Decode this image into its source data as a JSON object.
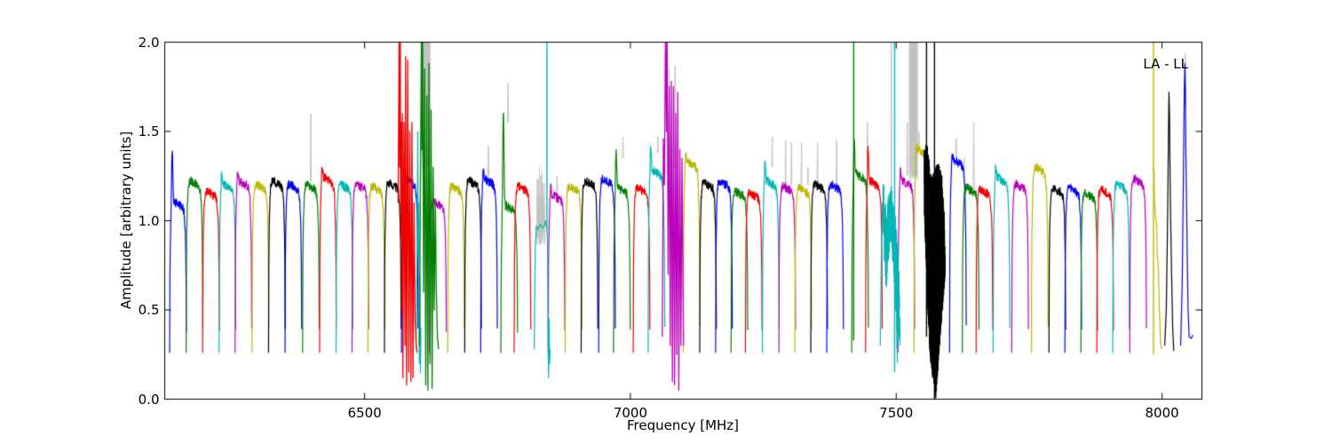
{
  "chart_data": {
    "type": "line",
    "title": "",
    "xlabel": "Frequency [MHz]",
    "ylabel": "Amplitude [arbitrary units]",
    "annotation": "LA - LL",
    "xlim": [
      6124,
      8075
    ],
    "ylim": [
      0.0,
      2.0
    ],
    "x_ticks": [
      6500,
      7000,
      7500,
      8000
    ],
    "x_tick_labels": [
      "6500",
      "7000",
      "7500",
      "8000"
    ],
    "y_ticks": [
      0.0,
      0.5,
      1.0,
      1.5,
      2.0
    ],
    "y_tick_labels": [
      "0.0",
      "0.5",
      "1.0",
      "1.5",
      "2.0"
    ],
    "grid": false,
    "legend": "none",
    "frame_color": "#000000",
    "background": "#ffffff",
    "palette": {
      "b": "#0000ee",
      "g": "#007d00",
      "r": "#ee0000",
      "c": "#00b5b5",
      "m": "#bb00bb",
      "y": "#b8b800",
      "k": "#000000",
      "gray": "#c3c3c3"
    },
    "subband_width_mhz": 31,
    "baseline_amplitude": 0.26,
    "subbands": [
      {
        "f": 6149,
        "c": "b",
        "p": 1.12,
        "s": 1.44
      },
      {
        "f": 6180,
        "c": "g",
        "p": 1.24
      },
      {
        "f": 6211,
        "c": "r",
        "p": 1.18
      },
      {
        "f": 6242,
        "c": "c",
        "p": 1.22,
        "s": 1.3
      },
      {
        "f": 6272,
        "c": "m",
        "p": 1.24,
        "s": 1.3
      },
      {
        "f": 6304,
        "c": "y",
        "p": 1.22
      },
      {
        "f": 6335,
        "c": "k",
        "p": 1.24
      },
      {
        "f": 6366,
        "c": "b",
        "p": 1.22
      },
      {
        "f": 6399,
        "c": "g",
        "p": 1.22
      },
      {
        "f": 6431,
        "c": "r",
        "p": 1.26,
        "s": 1.33
      },
      {
        "f": 6462,
        "c": "c",
        "p": 1.22
      },
      {
        "f": 6492,
        "c": "m",
        "p": 1.22
      },
      {
        "f": 6522,
        "c": "y",
        "p": 1.21
      },
      {
        "f": 6553,
        "c": "k",
        "p": 1.23
      },
      {
        "f": 6585,
        "c": "b",
        "p": 1.25
      },
      {
        "f": 6638,
        "c": "m",
        "p": 1.12
      },
      {
        "f": 6672,
        "c": "y",
        "p": 1.21
      },
      {
        "f": 6704,
        "c": "k",
        "p": 1.24
      },
      {
        "f": 6734,
        "c": "b",
        "p": 1.25,
        "s": 1.32
      },
      {
        "f": 6772,
        "c": "g",
        "p": 1.1,
        "s": 1.65
      },
      {
        "f": 6797,
        "c": "r",
        "p": 1.21
      },
      {
        "f": 6861,
        "c": "m",
        "p": 1.16,
        "s": 1.22
      },
      {
        "f": 6893,
        "c": "y",
        "p": 1.21
      },
      {
        "f": 6923,
        "c": "k",
        "p": 1.24
      },
      {
        "f": 6956,
        "c": "b",
        "p": 1.25
      },
      {
        "f": 6984,
        "c": "g",
        "p": 1.2,
        "s": 1.42
      },
      {
        "f": 7021,
        "c": "r",
        "p": 1.2
      },
      {
        "f": 7049,
        "c": "c",
        "p": 1.3,
        "s": 1.45
      },
      {
        "f": 7115,
        "c": "y",
        "p": 1.35,
        "s": 1.4
      },
      {
        "f": 7146,
        "c": "k",
        "p": 1.23
      },
      {
        "f": 7176,
        "c": "b",
        "p": 1.24
      },
      {
        "f": 7205,
        "c": "g",
        "p": 1.18
      },
      {
        "f": 7232,
        "c": "r",
        "p": 1.17
      },
      {
        "f": 7264,
        "c": "c",
        "p": 1.24,
        "s": 1.36
      },
      {
        "f": 7295,
        "c": "m",
        "p": 1.21
      },
      {
        "f": 7325,
        "c": "y",
        "p": 1.2
      },
      {
        "f": 7355,
        "c": "k",
        "p": 1.22
      },
      {
        "f": 7385,
        "c": "b",
        "p": 1.22
      },
      {
        "f": 7432,
        "c": "g",
        "p": 1.28,
        "s": 1.48
      },
      {
        "f": 7458,
        "c": "r",
        "p": 1.24,
        "s": 1.45
      },
      {
        "f": 7519,
        "c": "m",
        "p": 1.24,
        "s": 1.32
      },
      {
        "f": 7549,
        "c": "y",
        "p": 1.42,
        "s": 1.46
      },
      {
        "f": 7616,
        "c": "b",
        "p": 1.36,
        "s": 1.4
      },
      {
        "f": 7640,
        "c": "g",
        "p": 1.2
      },
      {
        "f": 7666,
        "c": "r",
        "p": 1.19
      },
      {
        "f": 7698,
        "c": "c",
        "p": 1.26,
        "s": 1.34
      },
      {
        "f": 7733,
        "c": "m",
        "p": 1.22
      },
      {
        "f": 7770,
        "c": "y",
        "p": 1.32
      },
      {
        "f": 7803,
        "c": "k",
        "p": 1.2
      },
      {
        "f": 7833,
        "c": "b",
        "p": 1.2
      },
      {
        "f": 7863,
        "c": "g",
        "p": 1.17
      },
      {
        "f": 7893,
        "c": "r",
        "p": 1.19
      },
      {
        "f": 7923,
        "c": "c",
        "p": 1.22
      },
      {
        "f": 7955,
        "c": "m",
        "p": 1.25
      }
    ],
    "rfi_regions": [
      {
        "c": "r",
        "points": [
          [
            6563,
            1.1
          ],
          [
            6565,
            2.08
          ],
          [
            6566,
            1.3
          ],
          [
            6567,
            2.08
          ],
          [
            6568,
            0.9
          ],
          [
            6569,
            1.55
          ],
          [
            6570,
            0.5
          ],
          [
            6571,
            1.6
          ],
          [
            6572,
            0.12
          ],
          [
            6574,
            1.55
          ],
          [
            6576,
            0.3
          ],
          [
            6577,
            1.92
          ],
          [
            6579,
            0.08
          ],
          [
            6581,
            1.9
          ],
          [
            6583,
            0.15
          ],
          [
            6585,
            1.5
          ],
          [
            6587,
            0.1
          ],
          [
            6589,
            1.55
          ],
          [
            6591,
            0.12
          ],
          [
            6593,
            1.1
          ],
          [
            6595,
            0.45
          ],
          [
            6597,
            0.3
          ],
          [
            6599,
            0.26
          ]
        ]
      },
      {
        "c": "g",
        "points": [
          [
            6603,
            0.3
          ],
          [
            6605,
            1.2
          ],
          [
            6607,
            2.08
          ],
          [
            6608,
            1.4
          ],
          [
            6609,
            2.08
          ],
          [
            6611,
            0.6
          ],
          [
            6613,
            1.85
          ],
          [
            6615,
            0.08
          ],
          [
            6617,
            1.7
          ],
          [
            6619,
            0.05
          ],
          [
            6621,
            1.88
          ],
          [
            6623,
            0.2
          ],
          [
            6625,
            1.62
          ],
          [
            6627,
            0.06
          ],
          [
            6629,
            1.3
          ],
          [
            6631,
            0.5
          ],
          [
            6633,
            1.1
          ],
          [
            6635,
            0.6
          ],
          [
            6637,
            0.35
          ],
          [
            6639,
            0.28
          ]
        ]
      },
      {
        "c": "m",
        "points": [
          [
            7060,
            0.35
          ],
          [
            7062,
            1.46
          ],
          [
            7064,
            1.2
          ],
          [
            7066,
            2.08
          ],
          [
            7068,
            1.5
          ],
          [
            7069,
            2.08
          ],
          [
            7071,
            0.7
          ],
          [
            7073,
            1.75
          ],
          [
            7075,
            0.3
          ],
          [
            7077,
            1.78
          ],
          [
            7079,
            0.1
          ],
          [
            7081,
            1.75
          ],
          [
            7083,
            0.08
          ],
          [
            7085,
            1.6
          ],
          [
            7087,
            0.25
          ],
          [
            7089,
            1.72
          ],
          [
            7091,
            0.05
          ],
          [
            7093,
            1.4
          ],
          [
            7095,
            0.3
          ],
          [
            7097,
            1.35
          ],
          [
            7099,
            0.6
          ],
          [
            7100,
            0.3
          ]
        ]
      }
    ],
    "extra_lines": [
      {
        "c": "c",
        "points": [
          [
            6597,
            0.28
          ],
          [
            6599,
            0.9
          ],
          [
            6600,
            1.5
          ],
          [
            6601,
            0.8
          ],
          [
            6602,
            1.1
          ],
          [
            6603,
            0.2
          ],
          [
            6604,
            0.7
          ],
          [
            6605,
            0.15
          ],
          [
            6606,
            0.4
          ]
        ]
      },
      {
        "c": "c",
        "points": [
          [
            6819,
            0.28
          ],
          [
            6821,
            0.85
          ],
          [
            6823,
            0.97
          ],
          [
            6826,
            0.95
          ],
          [
            6830,
            0.98
          ],
          [
            6834,
            0.96
          ],
          [
            6838,
            0.97
          ],
          [
            6840,
            1.0
          ],
          [
            6842,
            0.97
          ],
          [
            6844,
            0.9
          ],
          [
            6845,
            0.35
          ],
          [
            6846,
            0.12
          ],
          [
            6847,
            0.45
          ],
          [
            6848,
            0.2
          ],
          [
            6849,
            0.28
          ]
        ]
      },
      {
        "c": "c",
        "points": [
          [
            7470,
            0.3
          ],
          [
            7472,
            0.8
          ],
          [
            7474,
            1.1
          ]
        ]
      },
      {
        "c": "y",
        "points": [
          [
            7983,
            1.3
          ],
          [
            7985,
            1.28
          ],
          [
            7986,
            1.1
          ],
          [
            7988,
            1.02
          ],
          [
            7990,
            0.98
          ],
          [
            7991,
            0.8
          ],
          [
            7993,
            0.75
          ],
          [
            7995,
            0.5
          ],
          [
            7997,
            0.33
          ],
          [
            7999,
            0.28
          ]
        ]
      },
      {
        "c": "k",
        "points": [
          [
            8005,
            0.3
          ],
          [
            8008,
            0.5
          ],
          [
            8010,
            0.9
          ],
          [
            8012,
            1.45
          ],
          [
            8013,
            1.72
          ],
          [
            8014,
            1.6
          ],
          [
            8015,
            1.3
          ],
          [
            8016,
            1.05
          ],
          [
            8018,
            0.7
          ],
          [
            8020,
            0.4
          ],
          [
            8022,
            0.27
          ]
        ]
      },
      {
        "c": "b",
        "points": [
          [
            8035,
            0.3
          ],
          [
            8038,
            0.65
          ],
          [
            8040,
            1.2
          ],
          [
            8042,
            1.75
          ],
          [
            8043,
            1.88
          ],
          [
            8044,
            1.7
          ],
          [
            8045,
            1.35
          ],
          [
            8047,
            0.9
          ],
          [
            8049,
            0.5
          ],
          [
            8051,
            0.35
          ],
          [
            8055,
            0.34
          ],
          [
            8058,
            0.36
          ]
        ]
      }
    ],
    "vlines": [
      {
        "f": 6843,
        "c": "c",
        "a1": 0.95,
        "a2": 2.06
      },
      {
        "f": 7420,
        "c": "g",
        "a1": 0.33,
        "a2": 2.06
      },
      {
        "f": 7497,
        "c": "c",
        "a1": 0.15,
        "a2": 2.06
      },
      {
        "f": 7557,
        "c": "k",
        "a1": 0.35,
        "a2": 2.06
      },
      {
        "f": 7572,
        "c": "k",
        "a1": 0.0,
        "a2": 2.06
      },
      {
        "f": 7984,
        "c": "y",
        "a1": 0.25,
        "a2": 2.06
      }
    ],
    "noise_blob_black": {
      "top": [
        [
          7553,
          1.4
        ],
        [
          7558,
          1.45
        ],
        [
          7563,
          1.3
        ],
        [
          7568,
          1.25
        ],
        [
          7574,
          1.3
        ],
        [
          7580,
          1.33
        ],
        [
          7586,
          1.25
        ],
        [
          7590,
          1.05
        ],
        [
          7592,
          0.8
        ]
      ],
      "bottom": [
        [
          7553,
          1.0
        ],
        [
          7556,
          0.75
        ],
        [
          7560,
          0.45
        ],
        [
          7564,
          0.2
        ],
        [
          7570,
          0.08
        ],
        [
          7574,
          0.0
        ],
        [
          7578,
          0.15
        ],
        [
          7582,
          0.3
        ],
        [
          7586,
          0.45
        ],
        [
          7590,
          0.6
        ],
        [
          7592,
          0.7
        ]
      ]
    },
    "noise_blob_cyan": {
      "top": [
        [
          7475,
          1.3
        ],
        [
          7478,
          1.15
        ],
        [
          7482,
          1.05
        ],
        [
          7486,
          1.18
        ],
        [
          7490,
          1.22
        ],
        [
          7494,
          1.1
        ],
        [
          7498,
          1.05
        ],
        [
          7502,
          0.95
        ],
        [
          7505,
          0.75
        ],
        [
          7507,
          0.4
        ]
      ],
      "bottom": [
        [
          7475,
          0.95
        ],
        [
          7478,
          0.75
        ],
        [
          7482,
          0.58
        ],
        [
          7486,
          0.8
        ],
        [
          7490,
          0.9
        ],
        [
          7494,
          0.75
        ],
        [
          7498,
          0.6
        ],
        [
          7502,
          0.2
        ],
        [
          7505,
          0.35
        ],
        [
          7507,
          0.25
        ]
      ]
    },
    "gray_spikes": [
      {
        "f": 6399,
        "b": 1.22,
        "a": 1.6
      },
      {
        "f": 6733,
        "b": 1.25,
        "a": 1.42
      },
      {
        "f": 6770,
        "b": 1.55,
        "a": 1.77
      },
      {
        "f": 6862,
        "b": 1.16,
        "a": 1.25
      },
      {
        "f": 6986,
        "b": 1.35,
        "a": 1.47
      },
      {
        "f": 7052,
        "b": 1.38,
        "a": 1.47
      },
      {
        "f": 7073,
        "b": 1.3,
        "a": 1.85
      },
      {
        "f": 7084,
        "b": 1.3,
        "a": 1.87
      },
      {
        "f": 7267,
        "b": 1.3,
        "a": 1.47
      },
      {
        "f": 7292,
        "b": 1.2,
        "a": 1.45
      },
      {
        "f": 7303,
        "b": 1.2,
        "a": 1.44
      },
      {
        "f": 7322,
        "b": 1.2,
        "a": 1.44
      },
      {
        "f": 7334,
        "b": 1.2,
        "a": 1.3
      },
      {
        "f": 7352,
        "b": 1.2,
        "a": 1.44
      },
      {
        "f": 7388,
        "b": 1.2,
        "a": 1.45
      },
      {
        "f": 7446,
        "b": 1.35,
        "a": 1.55
      },
      {
        "f": 7491,
        "b": 1.1,
        "a": 2.06
      },
      {
        "f": 7521,
        "b": 1.25,
        "a": 1.55
      },
      {
        "f": 7543,
        "b": 1.42,
        "a": 1.5
      },
      {
        "f": 7613,
        "b": 1.35,
        "a": 1.46
      },
      {
        "f": 7628,
        "b": 1.1,
        "a": 1.35
      },
      {
        "f": 7646,
        "b": 1.15,
        "a": 1.55
      },
      {
        "f": 8044,
        "b": 1.65,
        "a": 1.94
      }
    ],
    "gray_blocks": [
      {
        "f1": 6607,
        "f2": 6623,
        "a1": 1.35,
        "a2": 2.06
      },
      {
        "f1": 6824,
        "f2": 6839,
        "a1": 0.92,
        "a2": 1.32
      },
      {
        "f1": 7525,
        "f2": 7540,
        "a1": 1.28,
        "a2": 2.06
      }
    ]
  }
}
